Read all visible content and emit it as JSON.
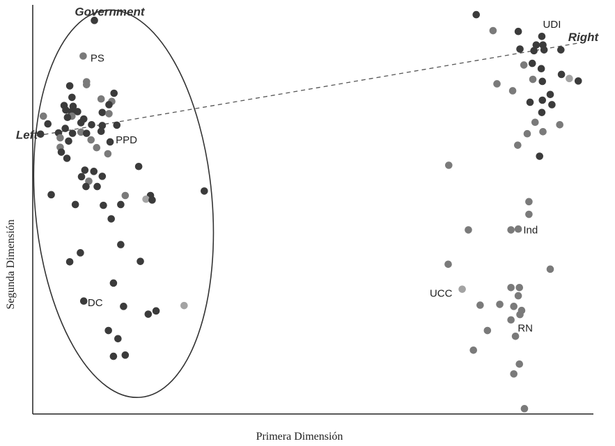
{
  "chart_data": {
    "type": "scatter",
    "xlabel": "Primera Dimensión",
    "ylabel": "Segunda Dimensión",
    "xlim": [
      0,
      100
    ],
    "ylim": [
      0,
      100
    ],
    "grid": false,
    "points": [
      {
        "x": 79.1,
        "y": 97.6,
        "c": "dark"
      },
      {
        "x": 82.1,
        "y": 93.7,
        "c": "mid"
      },
      {
        "x": 86.6,
        "y": 93.5,
        "c": "dark"
      },
      {
        "x": 90.8,
        "y": 92.3,
        "c": "dark"
      },
      {
        "x": 89.8,
        "y": 90.2,
        "c": "dark"
      },
      {
        "x": 91.0,
        "y": 90.2,
        "c": "dark"
      },
      {
        "x": 86.9,
        "y": 89.2,
        "c": "dark"
      },
      {
        "x": 89.4,
        "y": 88.8,
        "c": "dark"
      },
      {
        "x": 91.2,
        "y": 89.0,
        "c": "dark"
      },
      {
        "x": 94.2,
        "y": 89.0,
        "c": "dark"
      },
      {
        "x": 87.6,
        "y": 85.3,
        "c": "mid"
      },
      {
        "x": 89.1,
        "y": 85.7,
        "c": "dark"
      },
      {
        "x": 90.7,
        "y": 84.4,
        "c": "dark"
      },
      {
        "x": 94.3,
        "y": 83.0,
        "c": "dark"
      },
      {
        "x": 95.7,
        "y": 82.0,
        "c": "light"
      },
      {
        "x": 97.3,
        "y": 81.4,
        "c": "dark"
      },
      {
        "x": 82.8,
        "y": 80.7,
        "c": "mid"
      },
      {
        "x": 85.6,
        "y": 79.0,
        "c": "mid"
      },
      {
        "x": 89.2,
        "y": 81.8,
        "c": "mid"
      },
      {
        "x": 90.9,
        "y": 81.3,
        "c": "dark"
      },
      {
        "x": 92.3,
        "y": 78.1,
        "c": "dark"
      },
      {
        "x": 88.7,
        "y": 76.2,
        "c": "dark"
      },
      {
        "x": 90.9,
        "y": 76.7,
        "c": "dark"
      },
      {
        "x": 92.6,
        "y": 75.6,
        "c": "dark"
      },
      {
        "x": 90.8,
        "y": 73.7,
        "c": "dark"
      },
      {
        "x": 89.6,
        "y": 71.3,
        "c": "mid"
      },
      {
        "x": 91.0,
        "y": 69.0,
        "c": "mid"
      },
      {
        "x": 94.0,
        "y": 70.7,
        "c": "mid"
      },
      {
        "x": 88.2,
        "y": 68.5,
        "c": "mid"
      },
      {
        "x": 86.5,
        "y": 65.7,
        "c": "mid"
      },
      {
        "x": 90.4,
        "y": 63.0,
        "c": "dark"
      },
      {
        "x": 74.2,
        "y": 60.8,
        "c": "mid"
      },
      {
        "x": 88.5,
        "y": 51.9,
        "c": "mid"
      },
      {
        "x": 88.5,
        "y": 48.8,
        "c": "mid"
      },
      {
        "x": 77.7,
        "y": 45.0,
        "c": "mid"
      },
      {
        "x": 85.3,
        "y": 45.0,
        "c": "mid"
      },
      {
        "x": 86.6,
        "y": 45.2,
        "c": "mid"
      },
      {
        "x": 74.1,
        "y": 36.6,
        "c": "mid"
      },
      {
        "x": 92.3,
        "y": 35.4,
        "c": "mid"
      },
      {
        "x": 76.6,
        "y": 30.5,
        "c": "light"
      },
      {
        "x": 85.3,
        "y": 30.9,
        "c": "mid"
      },
      {
        "x": 86.8,
        "y": 30.9,
        "c": "mid"
      },
      {
        "x": 86.6,
        "y": 28.9,
        "c": "mid"
      },
      {
        "x": 79.8,
        "y": 26.6,
        "c": "mid"
      },
      {
        "x": 83.3,
        "y": 26.8,
        "c": "mid"
      },
      {
        "x": 85.8,
        "y": 26.3,
        "c": "mid"
      },
      {
        "x": 87.2,
        "y": 25.3,
        "c": "mid"
      },
      {
        "x": 86.9,
        "y": 24.3,
        "c": "mid"
      },
      {
        "x": 85.3,
        "y": 23.0,
        "c": "mid"
      },
      {
        "x": 81.1,
        "y": 20.4,
        "c": "mid"
      },
      {
        "x": 86.1,
        "y": 19.0,
        "c": "mid"
      },
      {
        "x": 78.6,
        "y": 15.6,
        "c": "mid"
      },
      {
        "x": 86.8,
        "y": 12.2,
        "c": "mid"
      },
      {
        "x": 85.8,
        "y": 9.8,
        "c": "mid"
      },
      {
        "x": 87.7,
        "y": 1.3,
        "c": "mid"
      },
      {
        "x": 11.0,
        "y": 96.2,
        "c": "dark"
      },
      {
        "x": 9.0,
        "y": 87.5,
        "c": "mid"
      },
      {
        "x": 9.6,
        "y": 81.2,
        "c": "mid"
      },
      {
        "x": 9.6,
        "y": 80.5,
        "c": "mid"
      },
      {
        "x": 6.6,
        "y": 80.2,
        "c": "dark"
      },
      {
        "x": 14.5,
        "y": 78.4,
        "c": "dark"
      },
      {
        "x": 7.0,
        "y": 77.4,
        "c": "dark"
      },
      {
        "x": 12.2,
        "y": 77.0,
        "c": "mid"
      },
      {
        "x": 14.1,
        "y": 76.4,
        "c": "mid"
      },
      {
        "x": 13.6,
        "y": 75.6,
        "c": "dark"
      },
      {
        "x": 5.6,
        "y": 75.4,
        "c": "dark"
      },
      {
        "x": 7.2,
        "y": 75.2,
        "c": "dark"
      },
      {
        "x": 5.9,
        "y": 74.3,
        "c": "dark"
      },
      {
        "x": 6.9,
        "y": 73.9,
        "c": "dark"
      },
      {
        "x": 8.0,
        "y": 73.9,
        "c": "dark"
      },
      {
        "x": 12.4,
        "y": 73.7,
        "c": "dark"
      },
      {
        "x": 13.6,
        "y": 73.4,
        "c": "mid"
      },
      {
        "x": 1.9,
        "y": 72.8,
        "c": "mid"
      },
      {
        "x": 7.0,
        "y": 72.8,
        "c": "mid"
      },
      {
        "x": 6.2,
        "y": 72.5,
        "c": "dark"
      },
      {
        "x": 9.1,
        "y": 72.1,
        "c": "dark"
      },
      {
        "x": 8.6,
        "y": 71.2,
        "c": "dark"
      },
      {
        "x": 2.7,
        "y": 70.9,
        "c": "dark"
      },
      {
        "x": 10.5,
        "y": 70.7,
        "c": "dark"
      },
      {
        "x": 12.4,
        "y": 70.5,
        "c": "dark"
      },
      {
        "x": 15.0,
        "y": 70.6,
        "c": "dark"
      },
      {
        "x": 5.8,
        "y": 69.8,
        "c": "dark"
      },
      {
        "x": 8.6,
        "y": 68.9,
        "c": "mid"
      },
      {
        "x": 9.6,
        "y": 68.6,
        "c": "dark"
      },
      {
        "x": 12.2,
        "y": 69.1,
        "c": "dark"
      },
      {
        "x": 1.4,
        "y": 68.4,
        "c": "dark"
      },
      {
        "x": 4.6,
        "y": 68.7,
        "c": "dark"
      },
      {
        "x": 7.1,
        "y": 68.6,
        "c": "dark"
      },
      {
        "x": 4.9,
        "y": 67.5,
        "c": "mid"
      },
      {
        "x": 10.4,
        "y": 67.0,
        "c": "mid"
      },
      {
        "x": 6.4,
        "y": 66.7,
        "c": "dark"
      },
      {
        "x": 13.8,
        "y": 66.5,
        "c": "dark"
      },
      {
        "x": 11.4,
        "y": 65.1,
        "c": "mid"
      },
      {
        "x": 4.9,
        "y": 65.2,
        "c": "mid"
      },
      {
        "x": 5.1,
        "y": 64.0,
        "c": "dark"
      },
      {
        "x": 13.4,
        "y": 63.6,
        "c": "mid"
      },
      {
        "x": 6.1,
        "y": 62.5,
        "c": "dark"
      },
      {
        "x": 18.9,
        "y": 60.5,
        "c": "dark"
      },
      {
        "x": 9.3,
        "y": 59.6,
        "c": "dark"
      },
      {
        "x": 10.9,
        "y": 59.3,
        "c": "dark"
      },
      {
        "x": 8.7,
        "y": 58.0,
        "c": "dark"
      },
      {
        "x": 12.4,
        "y": 58.1,
        "c": "dark"
      },
      {
        "x": 10.0,
        "y": 56.9,
        "c": "mid"
      },
      {
        "x": 9.5,
        "y": 55.6,
        "c": "dark"
      },
      {
        "x": 11.5,
        "y": 55.6,
        "c": "dark"
      },
      {
        "x": 30.6,
        "y": 54.5,
        "c": "dark"
      },
      {
        "x": 3.3,
        "y": 53.6,
        "c": "dark"
      },
      {
        "x": 16.5,
        "y": 53.4,
        "c": "mid"
      },
      {
        "x": 21.0,
        "y": 53.4,
        "c": "dark"
      },
      {
        "x": 20.2,
        "y": 52.5,
        "c": "light"
      },
      {
        "x": 21.3,
        "y": 52.3,
        "c": "dark"
      },
      {
        "x": 7.6,
        "y": 51.2,
        "c": "dark"
      },
      {
        "x": 12.6,
        "y": 51.0,
        "c": "dark"
      },
      {
        "x": 15.7,
        "y": 51.2,
        "c": "dark"
      },
      {
        "x": 14.0,
        "y": 47.7,
        "c": "dark"
      },
      {
        "x": 15.7,
        "y": 41.4,
        "c": "dark"
      },
      {
        "x": 8.5,
        "y": 39.4,
        "c": "dark"
      },
      {
        "x": 6.6,
        "y": 37.2,
        "c": "dark"
      },
      {
        "x": 19.2,
        "y": 37.3,
        "c": "dark"
      },
      {
        "x": 14.4,
        "y": 32.0,
        "c": "dark"
      },
      {
        "x": 9.1,
        "y": 27.6,
        "c": "dark"
      },
      {
        "x": 16.2,
        "y": 26.3,
        "c": "dark"
      },
      {
        "x": 27.0,
        "y": 26.5,
        "c": "light"
      },
      {
        "x": 22.0,
        "y": 25.2,
        "c": "dark"
      },
      {
        "x": 20.6,
        "y": 24.4,
        "c": "dark"
      },
      {
        "x": 13.5,
        "y": 20.4,
        "c": "dark"
      },
      {
        "x": 15.2,
        "y": 18.4,
        "c": "dark"
      },
      {
        "x": 16.5,
        "y": 14.4,
        "c": "dark"
      },
      {
        "x": 14.4,
        "y": 14.1,
        "c": "dark"
      }
    ],
    "annotations": [
      {
        "text": "UDI",
        "x": 91.0,
        "y": 95.2
      },
      {
        "text": "Right",
        "x": 95.5,
        "y": 92.0,
        "style": "italic"
      },
      {
        "text": "Government",
        "x": 7.5,
        "y": 98.2,
        "style": "italic"
      },
      {
        "text": "PS",
        "x": 10.3,
        "y": 87.0
      },
      {
        "text": "Left",
        "x": -3.0,
        "y": 68.1,
        "style": "italic"
      },
      {
        "text": "PPD",
        "x": 14.8,
        "y": 67.0
      },
      {
        "text": "Ind",
        "x": 87.5,
        "y": 45.0
      },
      {
        "text": "UCC",
        "x": 70.8,
        "y": 29.5
      },
      {
        "text": "RN",
        "x": 86.5,
        "y": 21.0
      },
      {
        "text": "DC",
        "x": 9.8,
        "y": 27.2
      }
    ],
    "left_right_line": {
      "x1": 0.7,
      "y1": 68.0,
      "x2": 97.5,
      "y2": 90.7
    },
    "government_ellipse": {
      "cx": 16.2,
      "cy": 51.4,
      "rx": 15.8,
      "ry": 47.5
    }
  }
}
